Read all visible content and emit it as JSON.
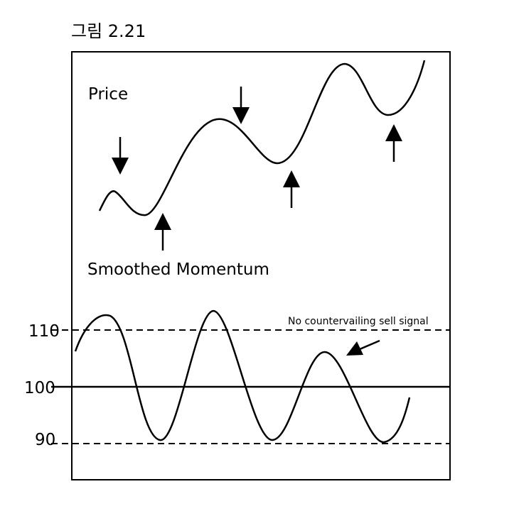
{
  "figure_label": "그림 2.21",
  "panels": {
    "price_label": "Price",
    "momentum_label": "Smoothed Momentum"
  },
  "levels": [
    {
      "value": "110",
      "style": "dashed"
    },
    {
      "value": "100",
      "style": "solid"
    },
    {
      "value": "90",
      "style": "dashed"
    }
  ],
  "annotation": "No countervailing sell signal",
  "signals": {
    "sell_arrows": 2,
    "buy_arrows": 3
  },
  "colors": {
    "ink": "#000000",
    "background": "#ffffff"
  }
}
